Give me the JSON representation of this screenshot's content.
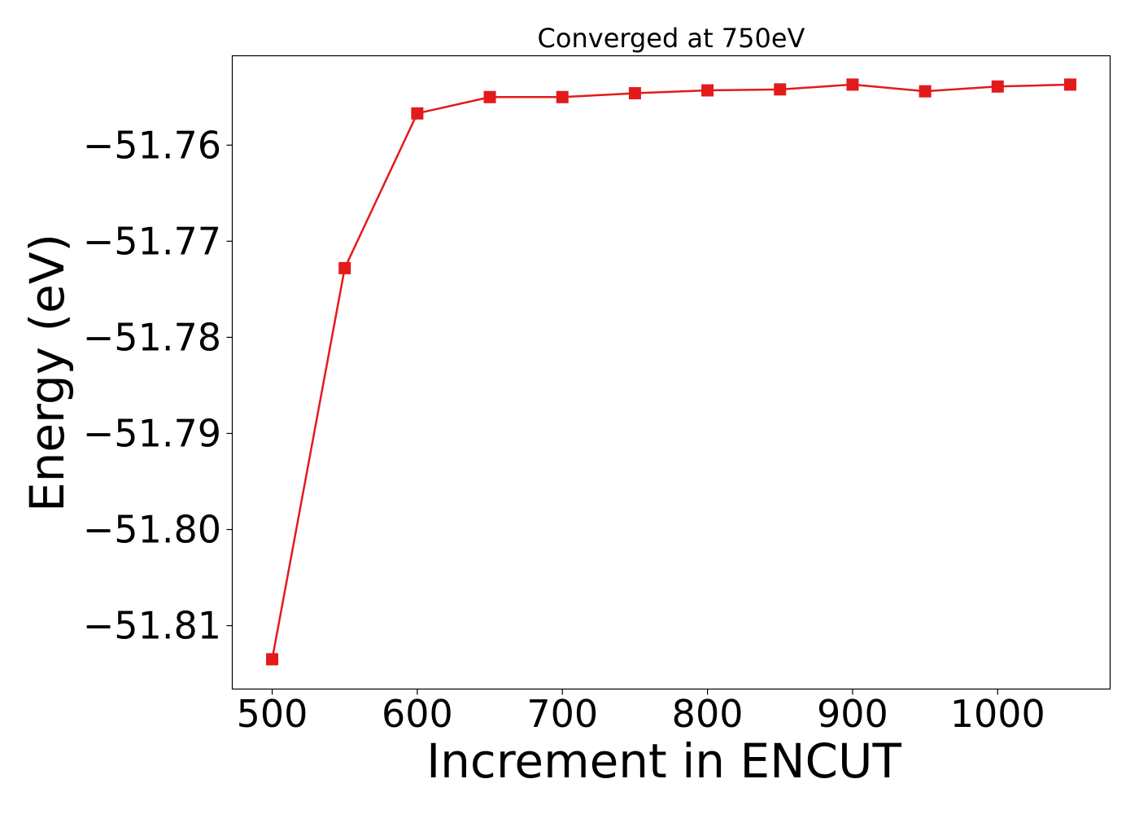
{
  "chart_data": {
    "type": "line",
    "title": "Converged at 750eV",
    "xlabel": "Increment in ENCUT",
    "ylabel": "Energy (eV)",
    "x": [
      500,
      550,
      600,
      650,
      700,
      750,
      800,
      850,
      900,
      950,
      1000,
      1050
    ],
    "series": [
      {
        "values": [
          -51.8135,
          -51.7728,
          -51.7567,
          -51.755,
          -51.755,
          -51.7546,
          -51.7543,
          -51.7542,
          -51.7537,
          -51.7544,
          -51.7539,
          -51.7537
        ],
        "color": "#e31a1c",
        "marker": "square"
      }
    ],
    "xticks": [
      500,
      600,
      700,
      800,
      900,
      1000
    ],
    "xtick_labels": [
      "500",
      "600",
      "700",
      "800",
      "900",
      "1000"
    ],
    "yticks": [
      -51.81,
      -51.8,
      -51.79,
      -51.78,
      -51.77,
      -51.76
    ],
    "ytick_labels": [
      "−51.81",
      "−51.80",
      "−51.79",
      "−51.78",
      "−51.77",
      "−51.76"
    ],
    "xlim": [
      472.5,
      1077.5
    ],
    "ylim": [
      -51.8166,
      -51.7507
    ],
    "grid": false,
    "legend": false
  }
}
